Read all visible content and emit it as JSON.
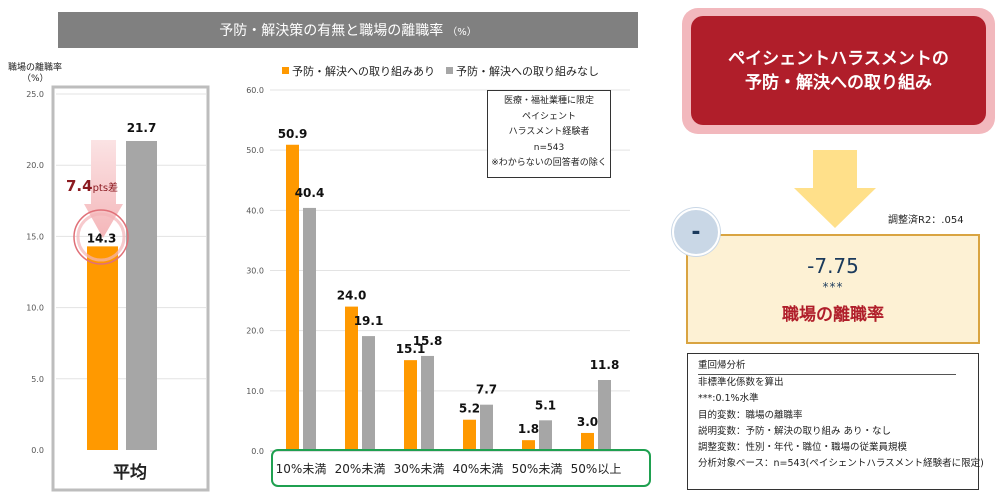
{
  "title": "予防・解決策の有無と職場の離職率",
  "title_unit": "（%）",
  "chart_data": [
    {
      "type": "bar",
      "ylabel": "職場の離職率",
      "yunit": "（%）",
      "ylim": [
        0,
        25
      ],
      "yticks": [
        "0.0",
        "5.0",
        "10.0",
        "15.0",
        "20.0",
        "25.0"
      ],
      "categories": [
        "平均"
      ],
      "series": [
        {
          "values": [
            14.3
          ],
          "color": "#ff9900"
        },
        {
          "values": [
            21.7
          ],
          "color": "#a6a6a6"
        }
      ],
      "value_labels": [
        "14.3",
        "21.7"
      ],
      "annotation_value": "7.4",
      "annotation_suffix": "pts差"
    },
    {
      "type": "bar",
      "ylim": [
        0,
        60
      ],
      "yticks": [
        "0.0",
        "10.0",
        "20.0",
        "30.0",
        "40.0",
        "50.0",
        "60.0"
      ],
      "categories": [
        "10%未満",
        "20%未満",
        "30%未満",
        "40%未満",
        "50%未満",
        "50%以上"
      ],
      "series": [
        {
          "name": "予防・解決への取り組みあり",
          "values": [
            50.9,
            24.0,
            15.1,
            5.2,
            1.8,
            3.0
          ],
          "color": "#ff9900"
        },
        {
          "name": "予防・解決への取り組みなし",
          "values": [
            40.4,
            19.1,
            15.8,
            7.7,
            5.1,
            11.8
          ],
          "color": "#a6a6a6"
        }
      ],
      "value_labels": [
        [
          "50.9",
          "24.0",
          "15.1",
          "5.2",
          "1.8",
          "3.0"
        ],
        [
          "40.4",
          "19.1",
          "15.8",
          "7.7",
          "5.1",
          "11.8"
        ]
      ],
      "legend_position": "top"
    }
  ],
  "note": {
    "lines": [
      "医療・福祉業種に限定",
      "ペイシェント",
      "ハラスメント経験者",
      "n=543",
      "※わからないの回答者の除く"
    ]
  },
  "right_panel": {
    "top_label_line1": "ペイシェントハラスメントの",
    "top_label_line2": "予防・解決への取り組み",
    "sign": "-",
    "r2": "調整済R2：.054",
    "coef": "-7.75",
    "sig": "***",
    "outcome": "職場の離職率",
    "colors": {
      "accent": "#b01e2a",
      "arrow": "#ffe08a",
      "box_fill": "#fdf1d4",
      "box_border": "#d9a441"
    }
  },
  "info": {
    "title": "重回帰分析",
    "lines": [
      "非標準化係数を算出",
      "***:0.1%水準",
      "目的変数：職場の離職率",
      "説明変数：予防・解決の取り組み あり・なし",
      "調整変数：性別・年代・職位・職場の従業員規模",
      "分析対象ベース：n=543(ペイシェントハラスメント経験者に限定)"
    ]
  }
}
